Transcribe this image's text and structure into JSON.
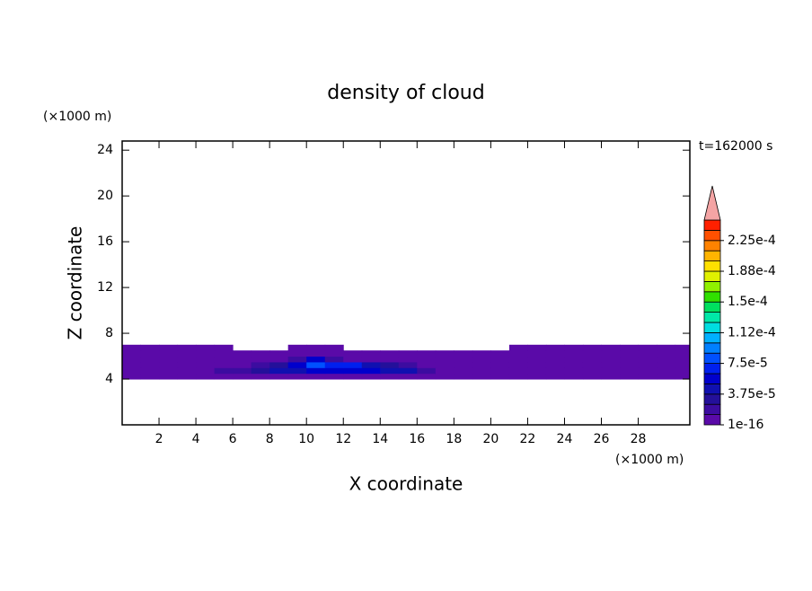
{
  "chart_data": {
    "type": "contour",
    "title": "density of cloud",
    "x_label": "X coordinate",
    "y_label": "Z coordinate",
    "x_unit": "(×1000 m)",
    "y_unit": "(×1000 m)",
    "annotation": "t=162000 s",
    "xlim": [
      0,
      30.8
    ],
    "ylim": [
      0,
      24.8
    ],
    "xticks": [
      2,
      4,
      6,
      8,
      10,
      12,
      14,
      16,
      18,
      20,
      22,
      24,
      26,
      28
    ],
    "yticks": [
      4,
      8,
      12,
      16,
      20,
      24
    ],
    "x": [
      0.5,
      1.5,
      2.5,
      3.5,
      4.5,
      5.5,
      6.5,
      7.5,
      8.5,
      9.5,
      10.5,
      11.5,
      12.5,
      13.5,
      14.5,
      15.5,
      16.5,
      17.5,
      18.5,
      19.5,
      20.5,
      21.5,
      22.5,
      23.5,
      24.5,
      25.5,
      26.5,
      27.5,
      28.5,
      29.5,
      30.5
    ],
    "y": [
      4.25,
      4.75,
      5.25,
      5.75,
      6.25,
      6.75
    ],
    "z": [
      [
        5e-06,
        5e-06,
        5e-06,
        5e-06,
        5e-06,
        5e-06,
        5e-06,
        5e-06,
        5e-06,
        5e-06,
        5e-06,
        5e-06,
        5e-06,
        5e-06,
        5e-06,
        5e-06,
        5e-06,
        5e-06,
        5e-06,
        5e-06,
        5e-06,
        5e-06,
        5e-06,
        5e-06,
        5e-06,
        5e-06,
        5e-06,
        5e-06,
        5e-06,
        5e-06,
        5e-06
      ],
      [
        5e-06,
        5e-06,
        5e-06,
        5e-06,
        5e-06,
        1.5e-05,
        2e-05,
        3e-05,
        4e-05,
        5e-05,
        6e-05,
        6e-05,
        6e-05,
        5.5e-05,
        5e-05,
        4e-05,
        1.5e-05,
        5e-06,
        5e-06,
        5e-06,
        5e-06,
        5e-06,
        5e-06,
        5e-06,
        5e-06,
        5e-06,
        5e-06,
        5e-06,
        5e-06,
        5e-06,
        5e-06
      ],
      [
        5e-06,
        5e-06,
        5e-06,
        5e-06,
        5e-06,
        5e-06,
        5e-06,
        2e-05,
        3e-05,
        6e-05,
        8.5e-05,
        7e-05,
        6.5e-05,
        4e-05,
        3e-05,
        1.5e-05,
        5e-06,
        5e-06,
        5e-06,
        5e-06,
        5e-06,
        5e-06,
        5e-06,
        5e-06,
        5e-06,
        5e-06,
        5e-06,
        5e-06,
        5e-06,
        5e-06,
        5e-06
      ],
      [
        5e-06,
        5e-06,
        5e-06,
        5e-06,
        5e-06,
        5e-06,
        5e-06,
        5e-06,
        5e-06,
        2e-05,
        6e-05,
        2e-05,
        5e-06,
        5e-06,
        5e-06,
        5e-06,
        5e-06,
        5e-06,
        5e-06,
        5e-06,
        5e-06,
        5e-06,
        5e-06,
        5e-06,
        5e-06,
        5e-06,
        5e-06,
        5e-06,
        5e-06,
        5e-06,
        5e-06
      ],
      [
        5e-06,
        5e-06,
        5e-06,
        5e-06,
        5e-06,
        5e-06,
        5e-06,
        5e-06,
        5e-06,
        5e-06,
        5e-06,
        5e-06,
        5e-06,
        5e-06,
        5e-06,
        5e-06,
        5e-06,
        5e-06,
        5e-06,
        5e-06,
        5e-06,
        5e-06,
        5e-06,
        5e-06,
        5e-06,
        5e-06,
        5e-06,
        5e-06,
        5e-06,
        5e-06,
        5e-06
      ],
      [
        5e-06,
        5e-06,
        5e-06,
        5e-06,
        5e-06,
        5e-06,
        null,
        null,
        null,
        5e-06,
        5e-06,
        5e-06,
        null,
        null,
        null,
        null,
        null,
        null,
        null,
        null,
        null,
        5e-06,
        5e-06,
        5e-06,
        5e-06,
        5e-06,
        5e-06,
        5e-06,
        5e-06,
        5e-06,
        5e-06
      ]
    ],
    "colorbar": {
      "clim": [
        1e-16,
        0.00025
      ],
      "colors": [
        "#5a0aa8",
        "#3c0ca0",
        "#24109a",
        "#1010b0",
        "#0000cc",
        "#0020ee",
        "#0050ff",
        "#0080ff",
        "#00b0ff",
        "#00dde0",
        "#00e8a8",
        "#00e060",
        "#30e000",
        "#90f000",
        "#e0f000",
        "#ffe000",
        "#ffb400",
        "#ff8200",
        "#ff5000",
        "#ff2000"
      ],
      "over_color": "#f4a4a4",
      "ticks": [
        1e-16,
        {
          "value": 3.75e-05,
          "label": "3.75e-5"
        },
        {
          "value": 7.5e-05,
          "label": "7.5e-5"
        },
        {
          "value": 0.0001125,
          "label": "1.12e-4"
        },
        {
          "value": 0.00015,
          "label": "1.5e-4"
        },
        {
          "value": 0.0001875,
          "label": "1.88e-4"
        },
        {
          "value": 0.000225,
          "label": "2.25e-4"
        }
      ]
    }
  }
}
